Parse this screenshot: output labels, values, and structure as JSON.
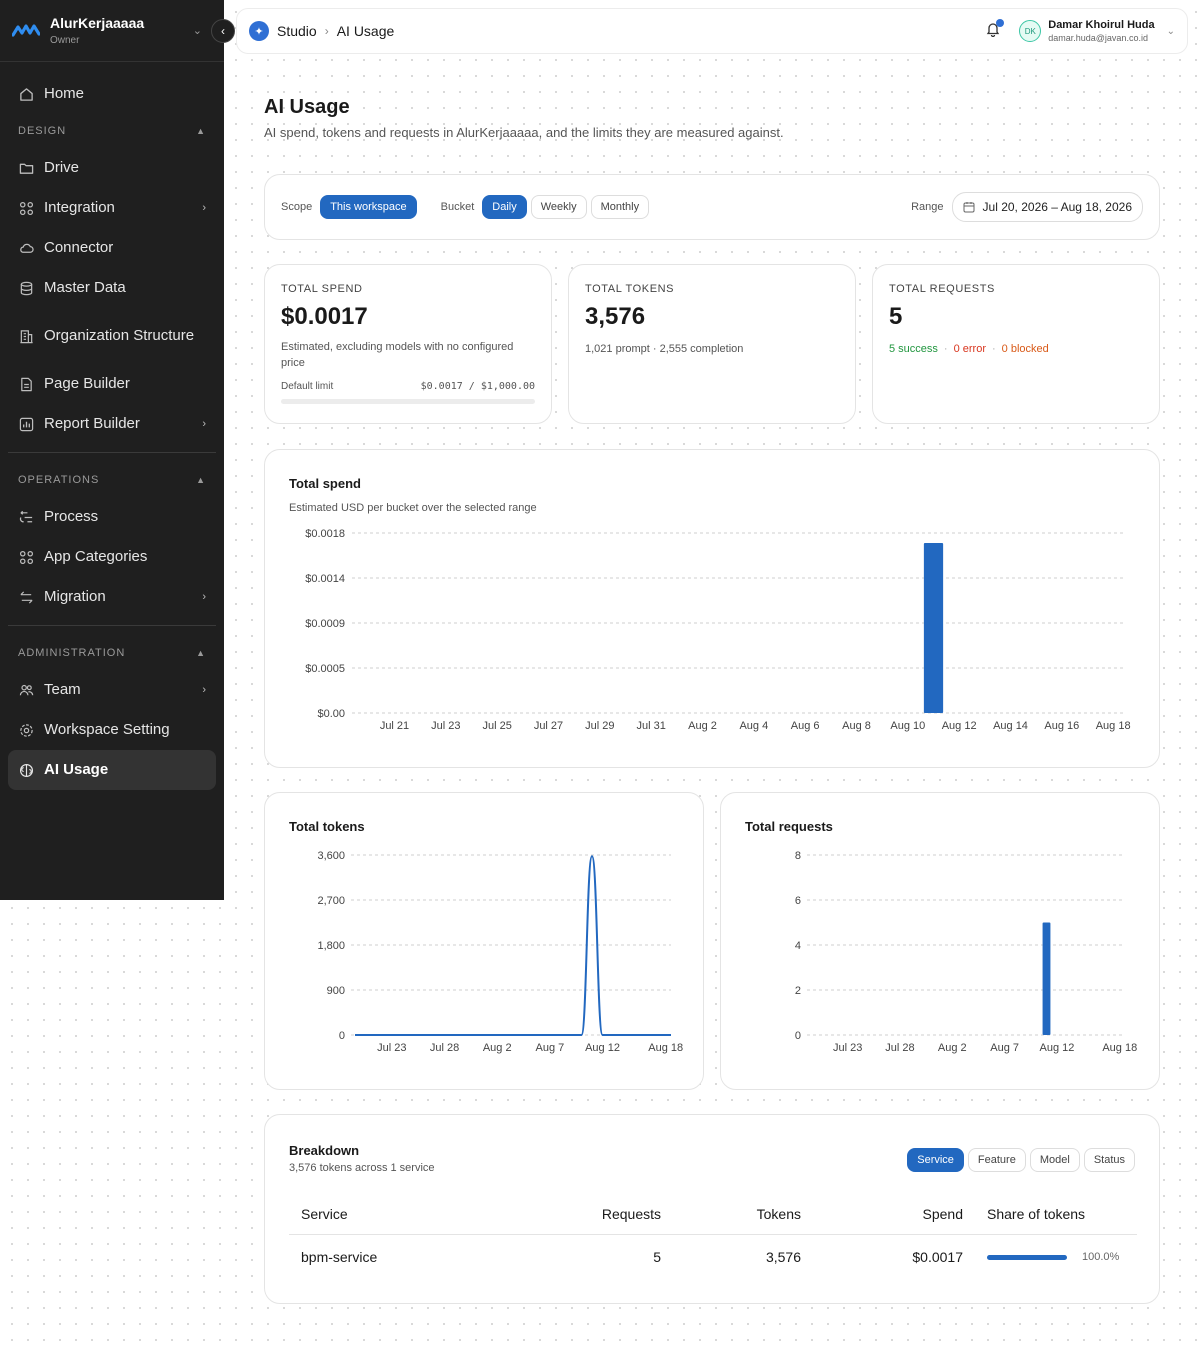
{
  "sidebar": {
    "workspace_name": "AlurKerjaaaaa",
    "workspace_role": "Owner",
    "home": "Home",
    "design_label": "DESIGN",
    "design_items": [
      {
        "label": "Drive"
      },
      {
        "label": "Integration"
      },
      {
        "label": "Connector"
      },
      {
        "label": "Master Data"
      },
      {
        "label": "Organization Structure"
      },
      {
        "label": "Page Builder"
      },
      {
        "label": "Report Builder"
      }
    ],
    "operations_label": "OPERATIONS",
    "operations_items": [
      {
        "label": "Process"
      },
      {
        "label": "App Categories"
      },
      {
        "label": "Migration"
      }
    ],
    "administration_label": "ADMINISTRATION",
    "administration_items": [
      {
        "label": "Team"
      },
      {
        "label": "Workspace Setting"
      },
      {
        "label": "AI Usage"
      }
    ]
  },
  "topbar": {
    "breadcrumb": [
      "Studio",
      "AI Usage"
    ],
    "user_initials": "DK",
    "user_name": "Damar Khoirul Huda",
    "user_email": "damar.huda@javan.co.id"
  },
  "page": {
    "title": "AI Usage",
    "subtitle": "AI spend, tokens and requests in AlurKerjaaaaa, and the limits they are measured against."
  },
  "filters": {
    "scope_label": "Scope",
    "scope_value": "This workspace",
    "bucket_label": "Bucket",
    "buckets": [
      "Daily",
      "Weekly",
      "Monthly"
    ],
    "selected_bucket": "Daily",
    "range_label": "Range",
    "range_value": "Jul 20, 2026 – Aug 18, 2026"
  },
  "kpis": {
    "spend": {
      "label": "TOTAL SPEND",
      "value": "$0.0017",
      "note": "Estimated, excluding models with no configured price",
      "limit_label": "Default limit",
      "limit_value": "$0.0017 / $1,000.00",
      "limit_fraction": 1.7e-06
    },
    "tokens": {
      "label": "TOTAL TOKENS",
      "value": "3,576",
      "note": "1,021 prompt · 2,555 completion"
    },
    "requests": {
      "label": "TOTAL REQUESTS",
      "value": "5",
      "success": "5 success",
      "error": "0 error",
      "blocked": "0 blocked",
      "dot": "·"
    }
  },
  "chart_data": [
    {
      "type": "bar",
      "title": "Total spend",
      "subtitle": "Estimated USD per bucket over the selected range",
      "y_ticks": [
        "$0.00",
        "$0.0005",
        "$0.0009",
        "$0.0014",
        "$0.0018"
      ],
      "ylim": [
        0,
        0.0018
      ],
      "x_ticks": [
        "Jul 21",
        "Jul 23",
        "Jul 25",
        "Jul 27",
        "Jul 29",
        "Jul 31",
        "Aug 2",
        "Aug 4",
        "Aug 6",
        "Aug 8",
        "Aug 10",
        "Aug 12",
        "Aug 14",
        "Aug 16",
        "Aug 18"
      ],
      "categories": [
        "Jul 20",
        "Jul 21",
        "Jul 22",
        "Jul 23",
        "Jul 24",
        "Jul 25",
        "Jul 26",
        "Jul 27",
        "Jul 28",
        "Jul 29",
        "Jul 30",
        "Jul 31",
        "Aug 1",
        "Aug 2",
        "Aug 3",
        "Aug 4",
        "Aug 5",
        "Aug 6",
        "Aug 7",
        "Aug 8",
        "Aug 9",
        "Aug 10",
        "Aug 11",
        "Aug 12",
        "Aug 13",
        "Aug 14",
        "Aug 15",
        "Aug 16",
        "Aug 17",
        "Aug 18"
      ],
      "values": [
        0,
        0,
        0,
        0,
        0,
        0,
        0,
        0,
        0,
        0,
        0,
        0,
        0,
        0,
        0,
        0,
        0,
        0,
        0,
        0,
        0,
        0,
        0.0017,
        0,
        0,
        0,
        0,
        0,
        0,
        0
      ],
      "color": "#2268c0"
    },
    {
      "type": "line",
      "title": "Total tokens",
      "y_ticks": [
        "0",
        "900",
        "1,800",
        "2,700",
        "3,600"
      ],
      "ylim": [
        0,
        3600
      ],
      "x_ticks": [
        "Jul 23",
        "Jul 28",
        "Aug 2",
        "Aug 7",
        "Aug 12",
        "Aug 18"
      ],
      "categories": [
        "Jul 20",
        "Jul 21",
        "Jul 22",
        "Jul 23",
        "Jul 24",
        "Jul 25",
        "Jul 26",
        "Jul 27",
        "Jul 28",
        "Jul 29",
        "Jul 30",
        "Jul 31",
        "Aug 1",
        "Aug 2",
        "Aug 3",
        "Aug 4",
        "Aug 5",
        "Aug 6",
        "Aug 7",
        "Aug 8",
        "Aug 9",
        "Aug 10",
        "Aug 11",
        "Aug 12",
        "Aug 13",
        "Aug 14",
        "Aug 15",
        "Aug 16",
        "Aug 17",
        "Aug 18"
      ],
      "values": [
        0,
        0,
        0,
        0,
        0,
        0,
        0,
        0,
        0,
        0,
        0,
        0,
        0,
        0,
        0,
        0,
        0,
        0,
        0,
        0,
        0,
        0,
        3576,
        0,
        0,
        0,
        0,
        0,
        0,
        0
      ],
      "color": "#2268c0"
    },
    {
      "type": "bar",
      "title": "Total requests",
      "y_ticks": [
        "0",
        "2",
        "4",
        "6",
        "8"
      ],
      "ylim": [
        0,
        8
      ],
      "x_ticks": [
        "Jul 23",
        "Jul 28",
        "Aug 2",
        "Aug 7",
        "Aug 12",
        "Aug 18"
      ],
      "categories": [
        "Jul 20",
        "Jul 21",
        "Jul 22",
        "Jul 23",
        "Jul 24",
        "Jul 25",
        "Jul 26",
        "Jul 27",
        "Jul 28",
        "Jul 29",
        "Jul 30",
        "Jul 31",
        "Aug 1",
        "Aug 2",
        "Aug 3",
        "Aug 4",
        "Aug 5",
        "Aug 6",
        "Aug 7",
        "Aug 8",
        "Aug 9",
        "Aug 10",
        "Aug 11",
        "Aug 12",
        "Aug 13",
        "Aug 14",
        "Aug 15",
        "Aug 16",
        "Aug 17",
        "Aug 18"
      ],
      "values": [
        0,
        0,
        0,
        0,
        0,
        0,
        0,
        0,
        0,
        0,
        0,
        0,
        0,
        0,
        0,
        0,
        0,
        0,
        0,
        0,
        0,
        0,
        5,
        0,
        0,
        0,
        0,
        0,
        0,
        0
      ],
      "color": "#2268c0"
    }
  ],
  "breakdown": {
    "title": "Breakdown",
    "subtitle": "3,576 tokens across 1 service",
    "tabs": [
      "Service",
      "Feature",
      "Model",
      "Status"
    ],
    "selected_tab": "Service",
    "columns": [
      "Service",
      "Requests",
      "Tokens",
      "Spend",
      "Share of tokens"
    ],
    "rows": [
      {
        "service": "bpm-service",
        "requests": "5",
        "tokens": "3,576",
        "spend": "$0.0017",
        "share": "100.0%",
        "share_fraction": 1.0
      }
    ]
  },
  "colors": {
    "accent": "#2268c0",
    "sidebar_bg": "#1f1f1f",
    "success": "#21963f",
    "error": "#d9361f",
    "blocked": "#d95a18"
  }
}
